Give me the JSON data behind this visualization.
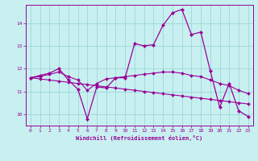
{
  "xlabel": "Windchill (Refroidissement éolien,°C)",
  "bg_color": "#c8f0f0",
  "line_color": "#990099",
  "grid_color": "#aadddd",
  "xlim": [
    -0.5,
    23.5
  ],
  "ylim": [
    9.5,
    14.8
  ],
  "yticks": [
    10,
    11,
    12,
    13,
    14
  ],
  "xticks": [
    0,
    1,
    2,
    3,
    4,
    5,
    6,
    7,
    8,
    9,
    10,
    11,
    12,
    13,
    14,
    15,
    16,
    17,
    18,
    19,
    20,
    21,
    22,
    23
  ],
  "series1_x": [
    0,
    1,
    2,
    3,
    4,
    5,
    6,
    7,
    8,
    9,
    10,
    11,
    12,
    13,
    14,
    15,
    16,
    17,
    18,
    19,
    20,
    21,
    22,
    23
  ],
  "series1_y": [
    11.6,
    11.7,
    11.8,
    12.0,
    11.5,
    11.1,
    9.8,
    11.2,
    11.15,
    11.6,
    11.6,
    13.1,
    13.0,
    13.05,
    13.9,
    14.45,
    14.6,
    13.5,
    13.6,
    11.9,
    10.3,
    11.35,
    10.15,
    9.9
  ],
  "series2_x": [
    0,
    1,
    2,
    3,
    4,
    5,
    6,
    7,
    8,
    9,
    10,
    11,
    12,
    13,
    14,
    15,
    16,
    17,
    18,
    19,
    20,
    21,
    22,
    23
  ],
  "series2_y": [
    11.6,
    11.65,
    11.75,
    11.85,
    11.65,
    11.5,
    11.05,
    11.35,
    11.55,
    11.6,
    11.65,
    11.7,
    11.75,
    11.8,
    11.85,
    11.85,
    11.8,
    11.7,
    11.65,
    11.5,
    11.35,
    11.25,
    11.05,
    10.9
  ],
  "series3_x": [
    0,
    1,
    2,
    3,
    4,
    5,
    6,
    7,
    8,
    9,
    10,
    11,
    12,
    13,
    14,
    15,
    16,
    17,
    18,
    19,
    20,
    21,
    22,
    23
  ],
  "series3_y": [
    11.6,
    11.55,
    11.5,
    11.45,
    11.4,
    11.35,
    11.3,
    11.25,
    11.2,
    11.15,
    11.1,
    11.05,
    11.0,
    10.95,
    10.9,
    10.85,
    10.8,
    10.75,
    10.7,
    10.65,
    10.6,
    10.55,
    10.5,
    10.45
  ]
}
